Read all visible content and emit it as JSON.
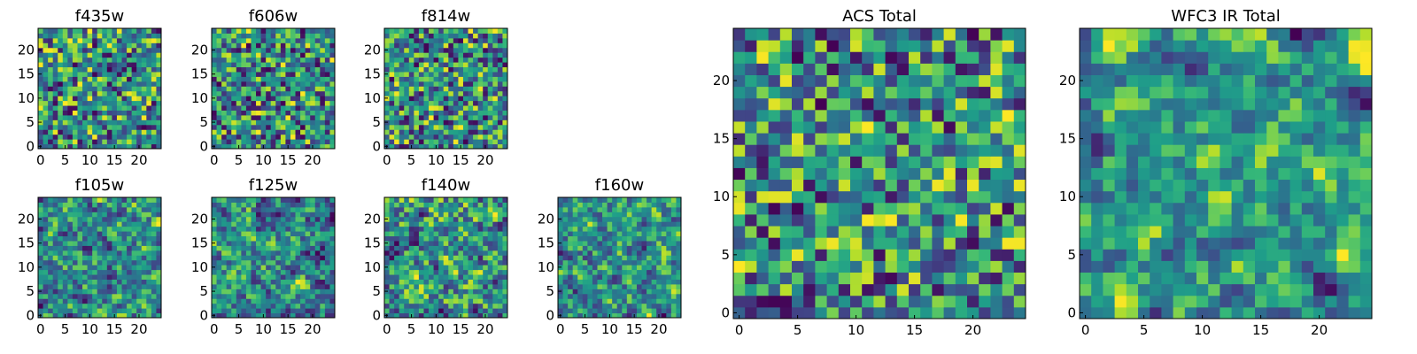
{
  "chart_data": [
    {
      "type": "heatmap",
      "title": "f435w",
      "xlim": [
        0,
        24
      ],
      "ylim": [
        0,
        24
      ],
      "xticks": [
        "0",
        "5",
        "10",
        "15",
        "20"
      ],
      "yticks": [
        "0",
        "5",
        "10",
        "15",
        "20"
      ],
      "grid": false,
      "colormap": "viridis",
      "seed": 11,
      "smooth": 0
    },
    {
      "type": "heatmap",
      "title": "f606w",
      "xlim": [
        0,
        24
      ],
      "ylim": [
        0,
        24
      ],
      "xticks": [
        "0",
        "5",
        "10",
        "15",
        "20"
      ],
      "yticks": [
        "0",
        "5",
        "10",
        "15",
        "20"
      ],
      "grid": false,
      "colormap": "viridis",
      "seed": 23,
      "smooth": 0
    },
    {
      "type": "heatmap",
      "title": "f814w",
      "xlim": [
        0,
        24
      ],
      "ylim": [
        0,
        24
      ],
      "xticks": [
        "0",
        "5",
        "10",
        "15",
        "20"
      ],
      "yticks": [
        "0",
        "5",
        "10",
        "15",
        "20"
      ],
      "grid": false,
      "colormap": "viridis",
      "seed": 37,
      "smooth": 0
    },
    {
      "type": "heatmap",
      "title": "f105w",
      "xlim": [
        0,
        24
      ],
      "ylim": [
        0,
        24
      ],
      "xticks": [
        "0",
        "5",
        "10",
        "15",
        "20"
      ],
      "yticks": [
        "0",
        "5",
        "10",
        "15",
        "20"
      ],
      "grid": false,
      "colormap": "viridis",
      "seed": 41,
      "smooth": 1
    },
    {
      "type": "heatmap",
      "title": "f125w",
      "xlim": [
        0,
        24
      ],
      "ylim": [
        0,
        24
      ],
      "xticks": [
        "0",
        "5",
        "10",
        "15",
        "20"
      ],
      "yticks": [
        "0",
        "5",
        "10",
        "15",
        "20"
      ],
      "grid": false,
      "colormap": "viridis",
      "seed": 53,
      "smooth": 1
    },
    {
      "type": "heatmap",
      "title": "f140w",
      "xlim": [
        0,
        24
      ],
      "ylim": [
        0,
        24
      ],
      "xticks": [
        "0",
        "5",
        "10",
        "15",
        "20"
      ],
      "yticks": [
        "0",
        "5",
        "10",
        "15",
        "20"
      ],
      "grid": false,
      "colormap": "viridis",
      "seed": 67,
      "smooth": 1
    },
    {
      "type": "heatmap",
      "title": "f160w",
      "xlim": [
        0,
        24
      ],
      "ylim": [
        0,
        24
      ],
      "xticks": [
        "0",
        "5",
        "10",
        "15",
        "20"
      ],
      "yticks": [
        "0",
        "5",
        "10",
        "15",
        "20"
      ],
      "grid": false,
      "colormap": "viridis",
      "seed": 79,
      "smooth": 1
    },
    {
      "type": "heatmap",
      "title": "ACS Total",
      "xlim": [
        0,
        24
      ],
      "ylim": [
        0,
        24
      ],
      "xticks": [
        "0",
        "5",
        "10",
        "15",
        "20"
      ],
      "yticks": [
        "0",
        "5",
        "10",
        "15",
        "20"
      ],
      "grid": false,
      "colormap": "viridis",
      "seed": 97,
      "smooth": 0
    },
    {
      "type": "heatmap",
      "title": "WFC3 IR Total",
      "xlim": [
        0,
        24
      ],
      "ylim": [
        0,
        24
      ],
      "xticks": [
        "0",
        "5",
        "10",
        "15",
        "20"
      ],
      "yticks": [
        "0",
        "5",
        "10",
        "15",
        "20"
      ],
      "grid": false,
      "colormap": "viridis",
      "seed": 113,
      "smooth": 2
    }
  ]
}
